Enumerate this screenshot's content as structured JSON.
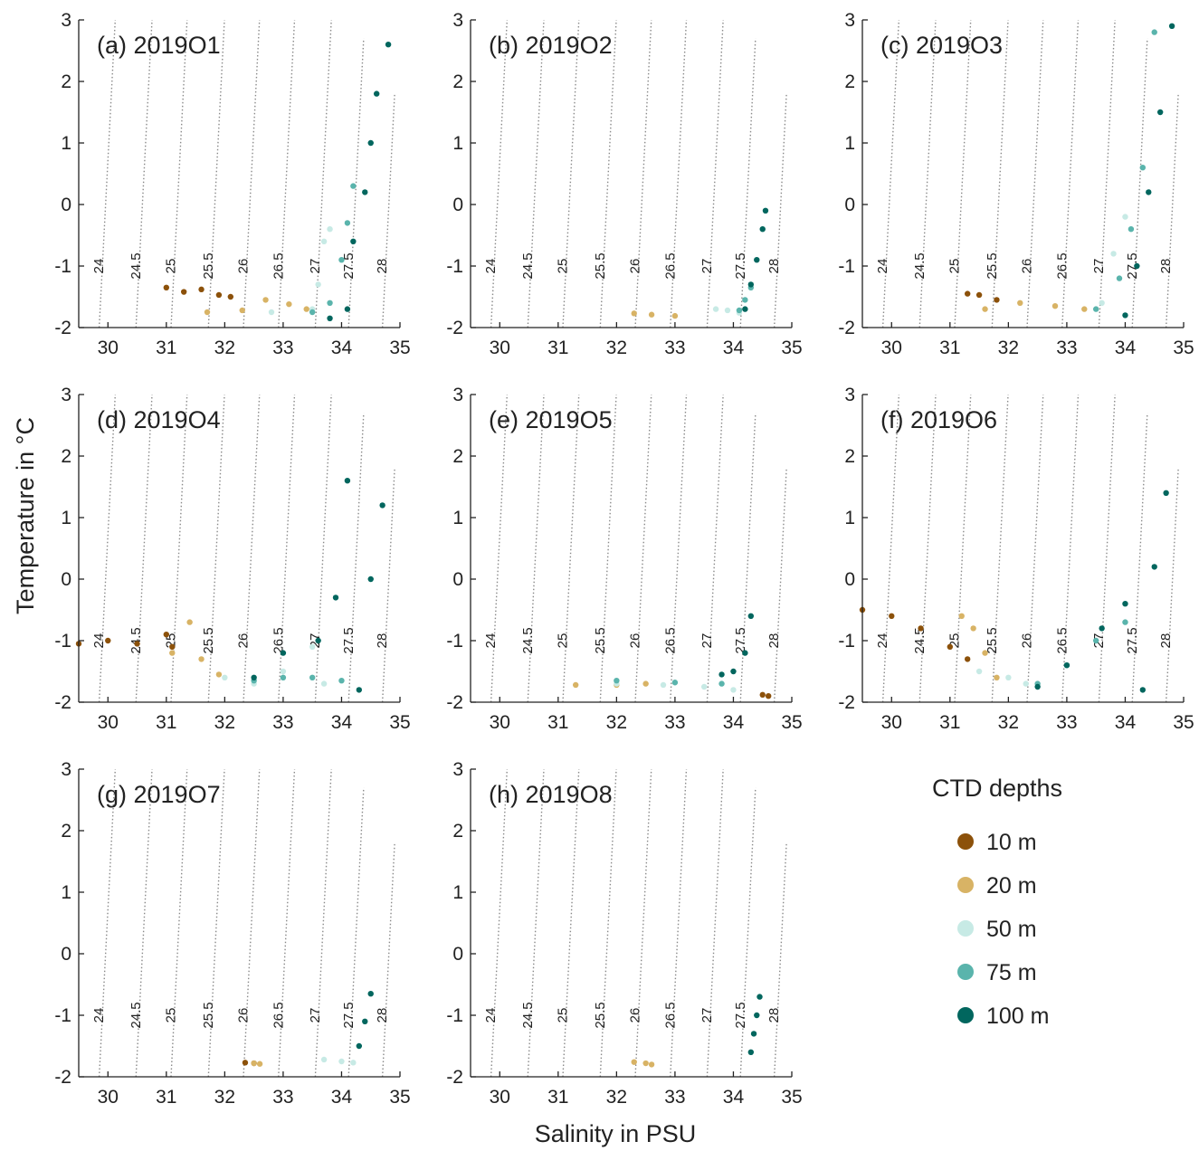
{
  "chart_data": {
    "type": "scatter",
    "xlabel": "Salinity in PSU",
    "ylabel": "Temperature in °C",
    "xlim": [
      29.5,
      35
    ],
    "ylim": [
      -2,
      3
    ],
    "x_ticks": [
      "30",
      "31",
      "32",
      "33",
      "34",
      "35"
    ],
    "y_ticks": [
      "-2",
      "-1",
      "0",
      "1",
      "2",
      "3"
    ],
    "grid": false,
    "isopycnal_labels": [
      "24",
      "24.5",
      "25",
      "25.5",
      "26",
      "26.5",
      "27",
      "27.5",
      "28"
    ],
    "legend": {
      "title": "CTD depths",
      "placement": "right",
      "entries": [
        {
          "label": "10 m",
          "color": "#8c510a"
        },
        {
          "label": "20 m",
          "color": "#d8b365"
        },
        {
          "label": "50 m",
          "color": "#c7eae5"
        },
        {
          "label": "75 m",
          "color": "#5ab4ac"
        },
        {
          "label": "100 m",
          "color": "#01665e"
        }
      ]
    },
    "panels": [
      {
        "title": "(a) 2019O1",
        "series": [
          {
            "color": "#8c510a",
            "points": [
              [
                31.0,
                -1.35
              ],
              [
                31.3,
                -1.42
              ],
              [
                31.6,
                -1.38
              ],
              [
                31.9,
                -1.47
              ],
              [
                32.1,
                -1.5
              ]
            ]
          },
          {
            "color": "#d8b365",
            "points": [
              [
                31.7,
                -1.75
              ],
              [
                32.3,
                -1.72
              ],
              [
                32.7,
                -1.55
              ],
              [
                33.1,
                -1.62
              ],
              [
                33.4,
                -1.7
              ]
            ]
          },
          {
            "color": "#c7eae5",
            "points": [
              [
                32.8,
                -1.75
              ],
              [
                33.5,
                -1.7
              ],
              [
                33.6,
                -1.3
              ],
              [
                33.7,
                -0.6
              ],
              [
                33.8,
                -0.4
              ]
            ]
          },
          {
            "color": "#5ab4ac",
            "points": [
              [
                33.5,
                -1.75
              ],
              [
                33.8,
                -1.6
              ],
              [
                34.0,
                -0.9
              ],
              [
                34.1,
                -0.3
              ],
              [
                34.2,
                0.3
              ]
            ]
          },
          {
            "color": "#01665e",
            "points": [
              [
                33.8,
                -1.85
              ],
              [
                34.1,
                -1.7
              ],
              [
                34.2,
                -0.6
              ],
              [
                34.4,
                0.2
              ],
              [
                34.5,
                1.0
              ],
              [
                34.6,
                1.8
              ],
              [
                34.8,
                2.6
              ]
            ]
          }
        ]
      },
      {
        "title": "(b) 2019O2",
        "series": [
          {
            "color": "#d8b365",
            "points": [
              [
                32.3,
                -1.77
              ],
              [
                32.6,
                -1.79
              ],
              [
                33.0,
                -1.81
              ]
            ]
          },
          {
            "color": "#c7eae5",
            "points": [
              [
                33.7,
                -1.7
              ],
              [
                33.9,
                -1.72
              ],
              [
                34.1,
                -1.76
              ]
            ]
          },
          {
            "color": "#5ab4ac",
            "points": [
              [
                34.1,
                -1.72
              ],
              [
                34.2,
                -1.55
              ],
              [
                34.3,
                -1.35
              ]
            ]
          },
          {
            "color": "#01665e",
            "points": [
              [
                34.2,
                -1.7
              ],
              [
                34.3,
                -1.3
              ],
              [
                34.4,
                -0.9
              ],
              [
                34.5,
                -0.4
              ],
              [
                34.55,
                -0.1
              ]
            ]
          }
        ]
      },
      {
        "title": "(c) 2019O3",
        "series": [
          {
            "color": "#8c510a",
            "points": [
              [
                31.3,
                -1.45
              ],
              [
                31.5,
                -1.47
              ],
              [
                31.8,
                -1.55
              ]
            ]
          },
          {
            "color": "#d8b365",
            "points": [
              [
                31.6,
                -1.7
              ],
              [
                32.2,
                -1.6
              ],
              [
                32.8,
                -1.65
              ],
              [
                33.3,
                -1.7
              ]
            ]
          },
          {
            "color": "#c7eae5",
            "points": [
              [
                33.6,
                -1.6
              ],
              [
                33.8,
                -0.8
              ],
              [
                34.0,
                -0.2
              ]
            ]
          },
          {
            "color": "#5ab4ac",
            "points": [
              [
                33.5,
                -1.7
              ],
              [
                33.9,
                -1.2
              ],
              [
                34.1,
                -0.4
              ],
              [
                34.3,
                0.6
              ],
              [
                34.5,
                2.8
              ]
            ]
          },
          {
            "color": "#01665e",
            "points": [
              [
                34.0,
                -1.8
              ],
              [
                34.2,
                -1.0
              ],
              [
                34.4,
                0.2
              ],
              [
                34.6,
                1.5
              ],
              [
                34.8,
                2.9
              ]
            ]
          }
        ]
      },
      {
        "title": "(d) 2019O4",
        "series": [
          {
            "color": "#8c510a",
            "points": [
              [
                29.5,
                -1.05
              ],
              [
                30.0,
                -1.0
              ],
              [
                30.5,
                -1.05
              ],
              [
                31.0,
                -0.9
              ],
              [
                31.1,
                -1.1
              ]
            ]
          },
          {
            "color": "#d8b365",
            "points": [
              [
                31.1,
                -1.2
              ],
              [
                31.4,
                -0.7
              ],
              [
                31.6,
                -1.3
              ],
              [
                31.9,
                -1.55
              ]
            ]
          },
          {
            "color": "#c7eae5",
            "points": [
              [
                32.0,
                -1.6
              ],
              [
                32.5,
                -1.7
              ],
              [
                33.0,
                -1.5
              ],
              [
                33.5,
                -1.1
              ],
              [
                33.7,
                -1.7
              ]
            ]
          },
          {
            "color": "#5ab4ac",
            "points": [
              [
                32.5,
                -1.65
              ],
              [
                33.0,
                -1.6
              ],
              [
                33.5,
                -1.6
              ],
              [
                34.0,
                -1.65
              ]
            ]
          },
          {
            "color": "#01665e",
            "points": [
              [
                32.5,
                -1.6
              ],
              [
                33.0,
                -1.2
              ],
              [
                33.6,
                -1.0
              ],
              [
                33.9,
                -0.3
              ],
              [
                34.1,
                1.6
              ],
              [
                34.3,
                -1.8
              ],
              [
                34.5,
                0.0
              ],
              [
                34.7,
                1.2
              ]
            ]
          }
        ]
      },
      {
        "title": "(e) 2019O5",
        "series": [
          {
            "color": "#d8b365",
            "points": [
              [
                31.3,
                -1.72
              ],
              [
                32.0,
                -1.72
              ],
              [
                32.5,
                -1.7
              ]
            ]
          },
          {
            "color": "#c7eae5",
            "points": [
              [
                32.0,
                -1.7
              ],
              [
                32.8,
                -1.72
              ],
              [
                33.5,
                -1.75
              ],
              [
                34.0,
                -1.8
              ]
            ]
          },
          {
            "color": "#5ab4ac",
            "points": [
              [
                32.0,
                -1.65
              ],
              [
                33.0,
                -1.68
              ],
              [
                33.8,
                -1.7
              ]
            ]
          },
          {
            "color": "#01665e",
            "points": [
              [
                33.8,
                -1.55
              ],
              [
                34.0,
                -1.5
              ],
              [
                34.2,
                -1.2
              ],
              [
                34.3,
                -0.6
              ]
            ]
          },
          {
            "color": "#8c510a",
            "points": [
              [
                34.5,
                -1.88
              ],
              [
                34.6,
                -1.9
              ]
            ]
          }
        ]
      },
      {
        "title": "(f) 2019O6",
        "series": [
          {
            "color": "#8c510a",
            "points": [
              [
                29.5,
                -0.5
              ],
              [
                30.0,
                -0.6
              ],
              [
                30.5,
                -0.8
              ],
              [
                31.0,
                -1.1
              ],
              [
                31.3,
                -1.3
              ]
            ]
          },
          {
            "color": "#d8b365",
            "points": [
              [
                31.2,
                -0.6
              ],
              [
                31.4,
                -0.8
              ],
              [
                31.6,
                -1.2
              ],
              [
                31.8,
                -1.6
              ]
            ]
          },
          {
            "color": "#c7eae5",
            "points": [
              [
                31.5,
                -1.5
              ],
              [
                32.0,
                -1.6
              ],
              [
                32.3,
                -1.7
              ]
            ]
          },
          {
            "color": "#5ab4ac",
            "points": [
              [
                32.5,
                -1.7
              ],
              [
                33.0,
                -1.4
              ],
              [
                33.5,
                -1.0
              ],
              [
                34.0,
                -0.7
              ]
            ]
          },
          {
            "color": "#01665e",
            "points": [
              [
                32.5,
                -1.75
              ],
              [
                33.0,
                -1.4
              ],
              [
                33.6,
                -0.8
              ],
              [
                34.0,
                -0.4
              ],
              [
                34.3,
                -1.8
              ],
              [
                34.5,
                0.2
              ],
              [
                34.7,
                1.4
              ]
            ]
          }
        ]
      },
      {
        "title": "(g) 2019O7",
        "series": [
          {
            "color": "#8c510a",
            "points": [
              [
                32.35,
                -1.77
              ],
              [
                32.5,
                -1.78
              ]
            ]
          },
          {
            "color": "#d8b365",
            "points": [
              [
                32.5,
                -1.78
              ],
              [
                32.6,
                -1.79
              ]
            ]
          },
          {
            "color": "#c7eae5",
            "points": [
              [
                33.7,
                -1.72
              ],
              [
                34.0,
                -1.75
              ],
              [
                34.2,
                -1.77
              ]
            ]
          },
          {
            "color": "#01665e",
            "points": [
              [
                34.3,
                -1.5
              ],
              [
                34.4,
                -1.1
              ],
              [
                34.5,
                -0.65
              ]
            ]
          }
        ]
      },
      {
        "title": "(h) 2019O8",
        "series": [
          {
            "color": "#d8b365",
            "points": [
              [
                32.3,
                -1.76
              ],
              [
                32.5,
                -1.78
              ],
              [
                32.6,
                -1.8
              ]
            ]
          },
          {
            "color": "#01665e",
            "points": [
              [
                34.3,
                -1.6
              ],
              [
                34.35,
                -1.3
              ],
              [
                34.4,
                -1.0
              ],
              [
                34.45,
                -0.7
              ]
            ]
          }
        ]
      }
    ]
  }
}
